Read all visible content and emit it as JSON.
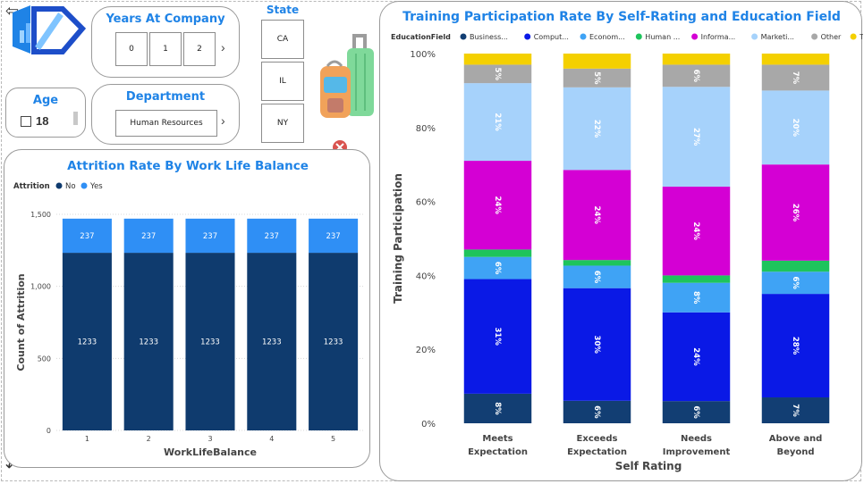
{
  "filters": {
    "years_at_company": {
      "title": "Years At Company",
      "options": [
        "0",
        "1",
        "2"
      ]
    },
    "state": {
      "title": "State",
      "options": [
        "CA",
        "IL",
        "NY"
      ]
    },
    "age": {
      "title": "Age",
      "value": "18"
    },
    "department": {
      "title": "Department",
      "value": "Human Resources"
    }
  },
  "colors": {
    "accent": "#1f83e6",
    "no": "#0f3b6e",
    "yes": "#2f8ff5",
    "business": "#123e73",
    "computer": "#0a19e6",
    "economics": "#3fa3f5",
    "human": "#1ec45c",
    "information": "#d400d4",
    "marketing": "#a6d2fb",
    "other": "#a8a8a8",
    "technical": "#f4d000"
  },
  "chart_data": [
    {
      "type": "bar",
      "stacked": true,
      "title": "Attrition Rate By Work Life Balance",
      "legend_title": "Attrition",
      "legend_position": "top-left",
      "xlabel": "WorkLifeBalance",
      "ylabel": "Count of Attrition",
      "categories": [
        "1",
        "2",
        "3",
        "4",
        "5"
      ],
      "series": [
        {
          "name": "No",
          "values": [
            1233,
            1233,
            1233,
            1233,
            1233
          ],
          "color": "#0f3b6e"
        },
        {
          "name": "Yes",
          "values": [
            237,
            237,
            237,
            237,
            237
          ],
          "color": "#2f8ff5"
        }
      ],
      "ylim": [
        0,
        1500
      ],
      "yticks": [
        0,
        500,
        1000,
        1500
      ],
      "ytick_labels": [
        "0",
        "500",
        "1,000",
        "1,500"
      ],
      "grid": true
    },
    {
      "type": "bar",
      "stacked": true,
      "normalized": true,
      "title": "Training Participation Rate By Self-Rating and Education Field",
      "legend_title": "EducationField",
      "legend_position": "top",
      "xlabel": "Self Rating",
      "ylabel": "Training Participation",
      "categories": [
        "Meets Expectation",
        "Exceeds Expectation",
        "Needs Improvement",
        "Above and Beyond"
      ],
      "series": [
        {
          "name": "Business...",
          "values": [
            8,
            6,
            6,
            7
          ],
          "color": "#123e73"
        },
        {
          "name": "Comput...",
          "values": [
            31,
            30,
            24,
            28
          ],
          "color": "#0a19e6"
        },
        {
          "name": "Econom...",
          "values": [
            6,
            6,
            8,
            6
          ],
          "color": "#3fa3f5"
        },
        {
          "name": "Human ...",
          "values": [
            2,
            1.5,
            2,
            3
          ],
          "color": "#1ec45c"
        },
        {
          "name": "Informa...",
          "values": [
            24,
            24,
            24,
            26
          ],
          "color": "#d400d4"
        },
        {
          "name": "Marketi...",
          "values": [
            21,
            22,
            27,
            20
          ],
          "color": "#a6d2fb"
        },
        {
          "name": "Other",
          "values": [
            5,
            5,
            6,
            7
          ],
          "color": "#a8a8a8"
        },
        {
          "name": "Technica...",
          "values": [
            3,
            4,
            3,
            3
          ],
          "color": "#f4d000"
        }
      ],
      "show_labels_for": [
        "Business...",
        "Comput...",
        "Econom...",
        "Informa...",
        "Marketi...",
        "Other"
      ],
      "ylim": [
        0,
        100
      ],
      "yticks": [
        0,
        20,
        40,
        60,
        80,
        100
      ],
      "ytick_labels": [
        "0%",
        "20%",
        "40%",
        "60%",
        "80%",
        "100%"
      ],
      "grid": false
    }
  ]
}
